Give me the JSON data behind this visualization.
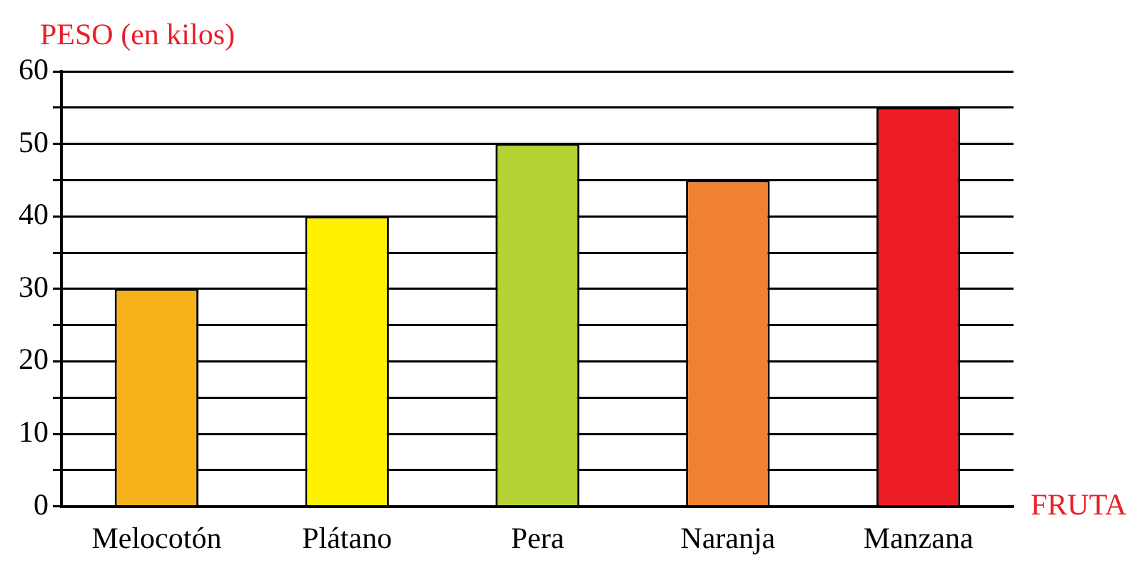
{
  "chart_data": {
    "type": "bar",
    "ylabel": "PESO (en kilos)",
    "xlabel": "FRUTA",
    "categories": [
      "Melocotón",
      "Plátano",
      "Pera",
      "Naranja",
      "Manzana"
    ],
    "values": [
      30,
      40,
      50,
      45,
      55
    ],
    "colors": [
      "#f7b21b",
      "#fff200",
      "#b5d334",
      "#f08130",
      "#ed1c24"
    ],
    "ylim": [
      0,
      60
    ],
    "yticks": [
      0,
      {
        "value": 5,
        "label": null
      },
      10,
      {
        "value": 15,
        "label": null
      },
      20,
      {
        "value": 25,
        "label": null
      },
      30,
      {
        "value": 35,
        "label": null
      },
      40,
      {
        "value": 45,
        "label": null
      },
      50,
      {
        "value": 55,
        "label": null
      },
      60
    ],
    "grid": "y",
    "legend": false
  }
}
